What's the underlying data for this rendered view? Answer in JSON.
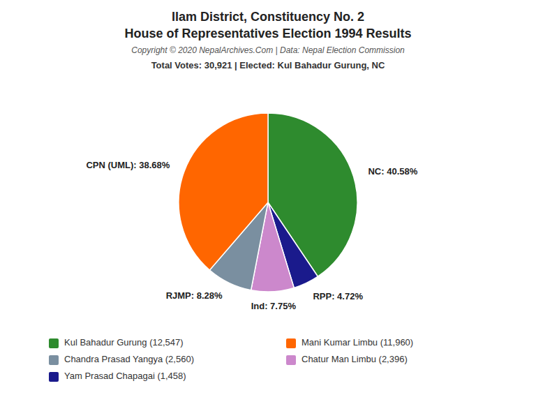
{
  "chart_data": {
    "type": "pie",
    "title": [
      "Ilam District, Constituency No. 2",
      "House of Representatives Election 1994 Results"
    ],
    "annotations": [
      "Copyright © 2020 NepalArchives.Com | Data: Nepal Election Commission"
    ],
    "subtitle": "Total Votes: 30,921 | Elected: Kul Bahadur Gurung, NC",
    "categories": [
      "NC",
      "RPP",
      "Ind",
      "RJMP",
      "CPN (UML)"
    ],
    "values": [
      40.58,
      4.72,
      7.75,
      8.28,
      38.68
    ],
    "value_labels": [
      "NC: 40.58%",
      "RPP: 4.72%",
      "Ind: 7.75%",
      "RJMP: 8.28%",
      "CPN (UML): 38.68%"
    ],
    "colors": [
      "#2e8b2e",
      "#1a1a8c",
      "#cc88cc",
      "#7a8fa0",
      "#ff6600"
    ],
    "data_labels": true,
    "legend": "bottom",
    "legend_entries": [
      {
        "label": "Kul Bahadur Gurung (12,547)",
        "color": "#2e8b2e"
      },
      {
        "label": "Chandra Prasad Yangya (2,560)",
        "color": "#7a8fa0"
      },
      {
        "label": "Yam Prasad Chapagai (1,458)",
        "color": "#1a1a8c"
      },
      {
        "label": "Mani Kumar Limbu (11,960)",
        "color": "#ff6600"
      },
      {
        "label": "Chatur Man Limbu (2,396)",
        "color": "#cc88cc"
      }
    ]
  }
}
